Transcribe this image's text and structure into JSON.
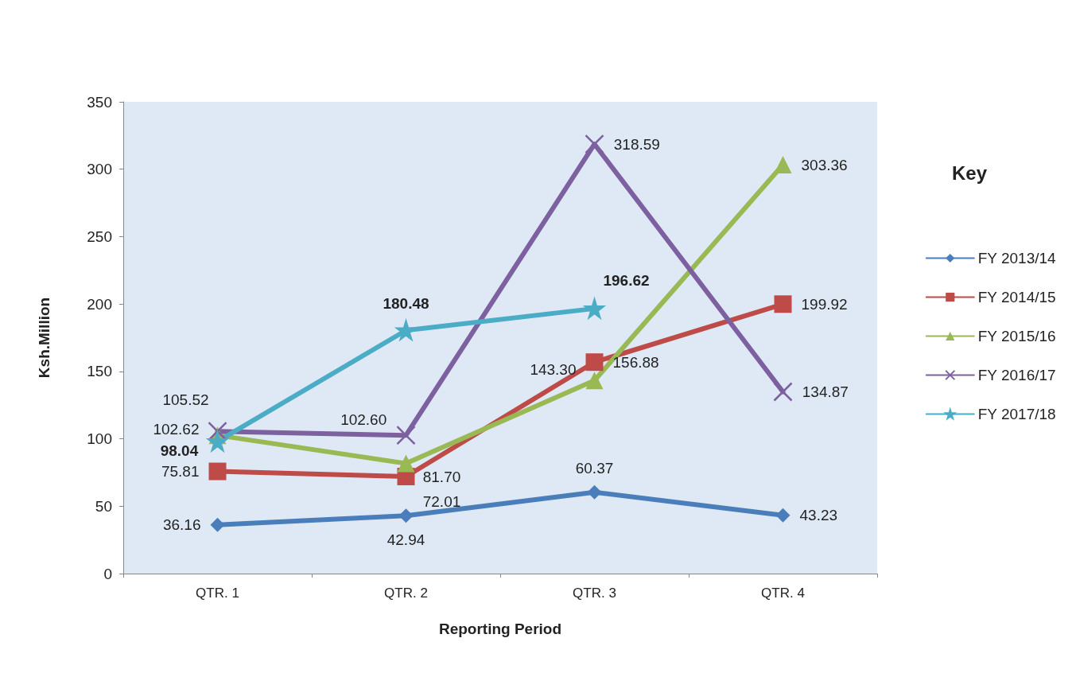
{
  "chart_data": {
    "type": "line",
    "xlabel": "Reporting Period",
    "ylabel": "Ksh.Million",
    "legend_title": "Key",
    "categories": [
      "QTR. 1",
      "QTR. 2",
      "QTR. 3",
      "QTR. 4"
    ],
    "series": [
      {
        "name": "FY 2013/14",
        "color": "#4a7ebb",
        "marker": "diamond",
        "values": [
          36.16,
          42.94,
          60.37,
          43.23
        ],
        "value_labels": [
          "36.16",
          "42.94",
          "60.37",
          "43.23"
        ]
      },
      {
        "name": "FY 2014/15",
        "color": "#be4b48",
        "marker": "square",
        "values": [
          75.81,
          72.01,
          156.88,
          199.92
        ],
        "value_labels": [
          "75.81",
          "72.01",
          "156.88",
          "199.92"
        ]
      },
      {
        "name": "FY 2015/16",
        "color": "#98b954",
        "marker": "triangle",
        "values": [
          102.62,
          81.7,
          143.3,
          303.36
        ],
        "value_labels": [
          "102.62",
          "81.70",
          "143.30",
          "303.36"
        ]
      },
      {
        "name": "FY 2016/17",
        "color": "#7d60a0",
        "marker": "cross",
        "values": [
          105.52,
          102.6,
          318.59,
          134.87
        ],
        "value_labels": [
          "105.52",
          "102.60",
          "318.59",
          "134.87"
        ]
      },
      {
        "name": "FY 2017/18",
        "color": "#4bacc6",
        "marker": "star",
        "values": [
          98.04,
          180.48,
          196.62,
          null
        ],
        "value_labels": [
          "98.04",
          "180.48",
          "196.62",
          null
        ]
      }
    ],
    "ylim": [
      0,
      350
    ],
    "yticks": [
      0,
      50,
      100,
      150,
      200,
      250,
      300,
      350
    ],
    "grid": false,
    "legend": "right",
    "line_style": "solid"
  }
}
